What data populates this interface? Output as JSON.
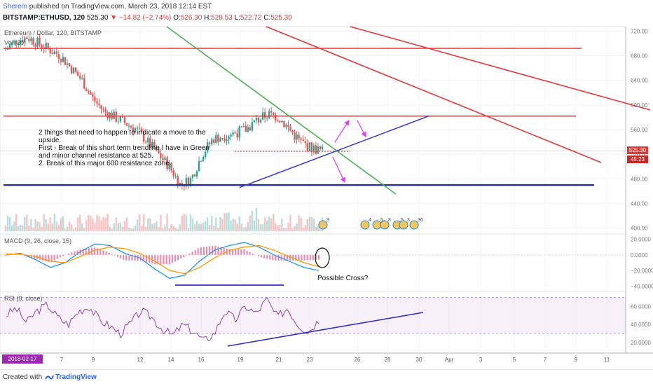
{
  "header": {
    "author": "Sherem",
    "published": "published on TradingView.com, March 23, 2018 12:14 EST",
    "symbol": "BITSTAMP:ETHUSD, 120",
    "last": "525.30",
    "change": "▼ −14.82 (−2.74%)",
    "open_label": "O:",
    "open": "526.30",
    "high_label": "H:",
    "high": "528.53",
    "low_label": "L:",
    "low": "522.72",
    "close_label": "C:",
    "close": "525.30"
  },
  "main_panel": {
    "title": "Ethereum / Dollar, 120, BITSTAMP",
    "vol_label": "Vol (20)",
    "price_tag": "525.30",
    "countdown": "45:23",
    "annotation_lines": [
      " 2 things that need to happen to indicate a move to the",
      "upside.",
      "First - Break of this short term trendline I have in Green",
      "and minor channel resistance at 525.",
      "2. Break of this major 600 resistance zone."
    ],
    "event_badges": [
      "3",
      "4",
      "5",
      "8",
      "5",
      "3",
      "36"
    ]
  },
  "macd_panel": {
    "title": "MACD (9, 26, close, 15)",
    "annotation": "Possible Cross?"
  },
  "rsi_panel": {
    "title": "RSI (9, close)"
  },
  "time_axis": {
    "badge": "2018-02-17 20:00:00",
    "ticks": [
      "7",
      "9",
      "12",
      "14",
      "16",
      "19",
      "21",
      "23",
      "26",
      "28",
      "30",
      "Apr",
      "3",
      "5",
      "7",
      "9",
      "11"
    ]
  },
  "footer": {
    "created_with": "Created with",
    "brand": "TradingView"
  },
  "chart_data": [
    {
      "type": "candlestick",
      "title": "Ethereum / Dollar, 120, BITSTAMP",
      "y_axis_ticks": [
        400,
        440,
        480,
        520,
        560,
        600,
        640,
        680,
        720
      ],
      "ylim": [
        395,
        725
      ],
      "approx_close_path": [
        690,
        705,
        710,
        700,
        690,
        680,
        660,
        640,
        610,
        590,
        580,
        570,
        560,
        540,
        520,
        500,
        470,
        480,
        520,
        545,
        550,
        555,
        560,
        575,
        585,
        580,
        560,
        540,
        530,
        525
      ],
      "horizontal_lines": [
        {
          "color": "#e53935",
          "value": 692,
          "style": "solid"
        },
        {
          "color": "#e53935",
          "value": 582,
          "style": "solid"
        },
        {
          "color": "#283593",
          "value": 470,
          "style": "solid"
        },
        {
          "color": "#c62828",
          "value": 525,
          "style": "dotted"
        }
      ],
      "trendlines": [
        {
          "color": "#4caf50",
          "label": "short term trendline"
        },
        {
          "color": "#3f3fd0",
          "label": "minor channel support"
        },
        {
          "color": "#e53935",
          "label": "descending channel upper"
        },
        {
          "color": "#e53935",
          "label": "descending channel lower"
        }
      ],
      "last_price": 525.3
    },
    {
      "type": "line",
      "title": "MACD (9, 26, close, 15)",
      "y_axis_ticks": [
        20,
        0,
        -20,
        -40
      ],
      "ylim": [
        -45,
        25
      ],
      "series": [
        {
          "color": "#2196f3",
          "values": [
            0,
            2,
            -6,
            -16,
            -10,
            4,
            14,
            12,
            2,
            -4,
            -18,
            -30,
            -26,
            -8,
            6,
            12,
            16,
            10,
            0,
            -8,
            -16,
            -20
          ]
        },
        {
          "color": "#ff9800",
          "values": [
            1,
            1,
            -2,
            -8,
            -10,
            -2,
            6,
            10,
            8,
            2,
            -8,
            -20,
            -24,
            -16,
            -4,
            6,
            10,
            12,
            6,
            -2,
            -10,
            -15
          ]
        }
      ]
    },
    {
      "type": "line",
      "title": "RSI (9, close)",
      "y_axis_ticks": [
        20,
        40,
        60
      ],
      "ylim": [
        10,
        75
      ],
      "band": [
        30,
        70
      ],
      "values": [
        50,
        58,
        42,
        55,
        62,
        48,
        40,
        55,
        60,
        45,
        38,
        30,
        42,
        55,
        48,
        35,
        28,
        40,
        32,
        22,
        30,
        55,
        45,
        60,
        52,
        68,
        48,
        58,
        40,
        32,
        45
      ],
      "trendline": {
        "color": "#3030c0"
      }
    }
  ]
}
